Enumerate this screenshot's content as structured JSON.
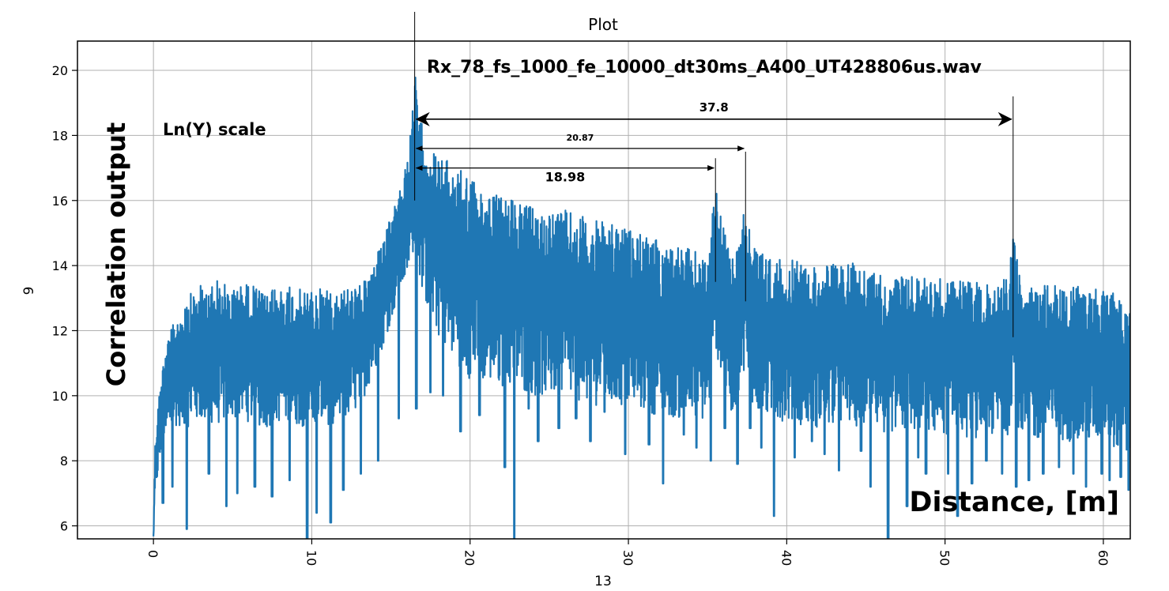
{
  "chart_data": {
    "type": "line",
    "title": "Plot",
    "subtitle": "Rx_78_fs_1000_fe_10000_dt30ms_A400_UT428806us.wav",
    "xlabel": "13",
    "ylabel": "9",
    "annotations": {
      "scale_note": "Ln(Y) scale",
      "distance_label": "Distance, [m]",
      "side_label": "Correlation output",
      "arrows": [
        {
          "label": "37.8",
          "x_from": 16.5,
          "x_to": 54.3,
          "y": 18.5
        },
        {
          "label": "20.87",
          "x_from": 16.5,
          "x_to": 37.4,
          "y": 17.6
        },
        {
          "label": "18.98",
          "x_from": 16.5,
          "x_to": 35.5,
          "y": 17.0
        }
      ],
      "marker_lines": [
        {
          "x": 16.5,
          "y_from": 16.0,
          "y_to": 21.8
        },
        {
          "x": 35.5,
          "y_from": 13.5,
          "y_to": 17.3
        },
        {
          "x": 37.4,
          "y_from": 12.9,
          "y_to": 17.5
        },
        {
          "x": 54.3,
          "y_from": 11.8,
          "y_to": 19.2
        }
      ]
    },
    "xlim": [
      -4.8,
      61.7
    ],
    "ylim": [
      5.6,
      20.9
    ],
    "xticks": [
      0,
      10,
      20,
      30,
      40,
      50,
      60
    ],
    "yticks": [
      6,
      8,
      10,
      12,
      14,
      16,
      18,
      20
    ],
    "grid": true,
    "series": [
      {
        "color": "#1f77b4",
        "x": [
          0.0,
          0.1,
          0.3,
          0.6,
          1.0,
          1.5,
          2.0,
          3.0,
          4.0,
          5.0,
          6.0,
          7.0,
          8.0,
          9.0,
          10.0,
          11.0,
          12.0,
          13.0,
          13.5,
          14.0,
          14.5,
          15.0,
          15.5,
          16.0,
          16.3,
          16.5,
          16.7,
          17.0,
          17.5,
          18.0,
          19.0,
          20.0,
          22.0,
          24.0,
          26.0,
          28.0,
          30.0,
          32.0,
          34.0,
          35.0,
          35.5,
          36.0,
          36.5,
          37.0,
          37.4,
          38.0,
          39.0,
          40.0,
          42.0,
          44.0,
          46.0,
          48.0,
          50.0,
          52.0,
          54.0,
          54.3,
          54.6,
          55.0,
          56.0,
          58.0,
          60.0,
          61.0,
          61.7
        ],
        "upper": [
          5.7,
          8.5,
          9.8,
          11.0,
          11.9,
          12.5,
          13.0,
          13.4,
          13.6,
          13.3,
          13.5,
          13.2,
          13.4,
          13.3,
          13.2,
          13.4,
          13.3,
          13.4,
          13.6,
          14.2,
          14.8,
          15.5,
          16.2,
          17.2,
          18.3,
          20.4,
          18.8,
          18.3,
          17.6,
          17.4,
          17.1,
          16.8,
          16.1,
          15.8,
          15.7,
          15.4,
          15.1,
          14.8,
          14.5,
          14.3,
          16.4,
          15.3,
          14.5,
          14.6,
          16.0,
          14.6,
          14.2,
          14.2,
          14.0,
          14.1,
          13.8,
          13.7,
          13.6,
          13.5,
          13.6,
          15.1,
          14.0,
          13.5,
          13.4,
          13.4,
          13.3,
          13.2,
          12.7
        ],
        "lower": [
          5.6,
          6.8,
          7.6,
          8.3,
          8.8,
          9.1,
          9.0,
          9.2,
          9.1,
          9.3,
          9.2,
          9.0,
          9.2,
          9.1,
          9.0,
          9.1,
          9.2,
          9.6,
          10.2,
          10.8,
          11.5,
          12.3,
          13.0,
          13.6,
          14.0,
          14.8,
          13.8,
          13.2,
          12.3,
          11.8,
          11.1,
          10.5,
          10.3,
          10.0,
          9.9,
          9.7,
          9.6,
          9.4,
          9.2,
          9.2,
          11.5,
          10.2,
          9.5,
          9.6,
          10.8,
          9.4,
          9.3,
          9.2,
          9.0,
          9.1,
          8.9,
          8.8,
          8.8,
          8.7,
          8.8,
          10.2,
          9.0,
          8.7,
          8.6,
          8.6,
          8.5,
          8.4,
          8.2
        ],
        "dips": [
          [
            0.6,
            6.7
          ],
          [
            1.2,
            7.2
          ],
          [
            2.1,
            5.9
          ],
          [
            3.5,
            7.6
          ],
          [
            4.6,
            6.6
          ],
          [
            5.3,
            7.0
          ],
          [
            6.4,
            7.2
          ],
          [
            7.5,
            6.9
          ],
          [
            8.6,
            7.4
          ],
          [
            9.7,
            5.6
          ],
          [
            10.3,
            6.4
          ],
          [
            11.2,
            6.1
          ],
          [
            12.0,
            7.1
          ],
          [
            13.1,
            7.6
          ],
          [
            14.2,
            8.0
          ],
          [
            15.5,
            9.3
          ],
          [
            16.6,
            9.6
          ],
          [
            17.5,
            10.1
          ],
          [
            18.3,
            10.0
          ],
          [
            19.4,
            8.9
          ],
          [
            20.6,
            9.4
          ],
          [
            22.2,
            7.8
          ],
          [
            22.8,
            5.6
          ],
          [
            23.7,
            9.6
          ],
          [
            24.3,
            8.6
          ],
          [
            25.6,
            9.0
          ],
          [
            26.7,
            9.3
          ],
          [
            27.6,
            8.6
          ],
          [
            28.5,
            9.5
          ],
          [
            29.8,
            8.2
          ],
          [
            31.3,
            8.5
          ],
          [
            32.2,
            7.3
          ],
          [
            33.5,
            8.8
          ],
          [
            34.3,
            8.4
          ],
          [
            35.2,
            8.0
          ],
          [
            36.1,
            9.0
          ],
          [
            36.9,
            7.9
          ],
          [
            37.7,
            9.0
          ],
          [
            38.4,
            8.4
          ],
          [
            39.2,
            6.3
          ],
          [
            40.5,
            8.1
          ],
          [
            41.6,
            8.6
          ],
          [
            42.4,
            8.2
          ],
          [
            43.3,
            7.7
          ],
          [
            44.7,
            8.3
          ],
          [
            45.3,
            7.2
          ],
          [
            46.4,
            5.6
          ],
          [
            47.6,
            6.6
          ],
          [
            48.3,
            8.1
          ],
          [
            48.8,
            7.6
          ],
          [
            50.2,
            7.6
          ],
          [
            50.8,
            6.3
          ],
          [
            51.7,
            7.3
          ],
          [
            52.6,
            8.0
          ],
          [
            53.6,
            7.6
          ],
          [
            54.5,
            7.2
          ],
          [
            55.3,
            7.4
          ],
          [
            56.2,
            7.6
          ],
          [
            57.2,
            7.8
          ],
          [
            58.1,
            7.6
          ],
          [
            58.9,
            7.2
          ],
          [
            59.9,
            7.6
          ],
          [
            60.4,
            7.4
          ],
          [
            61.1,
            7.5
          ],
          [
            61.6,
            7.1
          ]
        ]
      }
    ]
  }
}
